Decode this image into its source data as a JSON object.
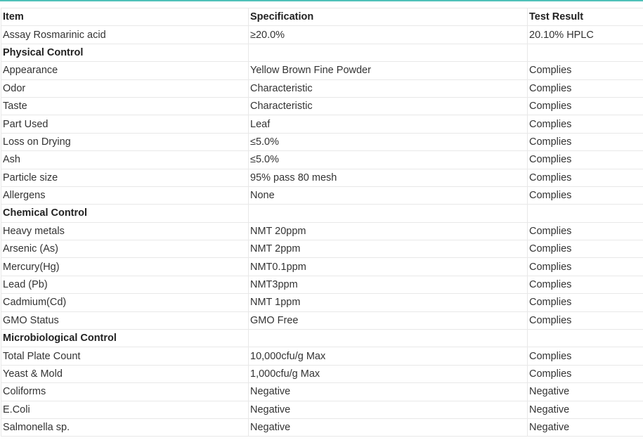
{
  "accent_color": "#4fc1b9",
  "header": [
    "Item",
    "Specification",
    "Test Result"
  ],
  "rows": [
    {
      "type": "row",
      "cells": [
        "Assay Rosmarinic acid",
        "≥20.0%",
        "20.10% HPLC"
      ]
    },
    {
      "type": "section",
      "cells": [
        "Physical Control",
        "",
        ""
      ]
    },
    {
      "type": "row",
      "cells": [
        "Appearance",
        "Yellow Brown Fine Powder",
        "Complies"
      ]
    },
    {
      "type": "row",
      "cells": [
        "Odor",
        "Characteristic",
        "Complies"
      ]
    },
    {
      "type": "row",
      "cells": [
        "Taste",
        "Characteristic",
        "Complies"
      ]
    },
    {
      "type": "row",
      "cells": [
        "Part Used",
        "Leaf",
        "Complies"
      ]
    },
    {
      "type": "row",
      "cells": [
        "Loss on Drying",
        "≤5.0%",
        "Complies"
      ]
    },
    {
      "type": "row",
      "cells": [
        "Ash",
        "≤5.0%",
        "Complies"
      ]
    },
    {
      "type": "row",
      "cells": [
        "Particle size",
        "95% pass 80 mesh",
        "Complies"
      ]
    },
    {
      "type": "row",
      "cells": [
        "Allergens",
        "None",
        "Complies"
      ]
    },
    {
      "type": "section",
      "cells": [
        "Chemical Control",
        "",
        ""
      ]
    },
    {
      "type": "row",
      "cells": [
        "Heavy metals",
        "NMT 20ppm",
        "Complies"
      ]
    },
    {
      "type": "row",
      "cells": [
        "Arsenic (As)",
        "NMT 2ppm",
        "Complies"
      ]
    },
    {
      "type": "row",
      "cells": [
        "Mercury(Hg)",
        "NMT0.1ppm",
        "Complies"
      ]
    },
    {
      "type": "row",
      "cells": [
        "Lead (Pb)",
        "NMT3ppm",
        "Complies"
      ]
    },
    {
      "type": "row",
      "cells": [
        "Cadmium(Cd)",
        "NMT 1ppm",
        "Complies"
      ]
    },
    {
      "type": "row",
      "cells": [
        "GMO Status",
        "GMO Free",
        "Complies"
      ]
    },
    {
      "type": "section",
      "cells": [
        "Microbiological Control",
        "",
        ""
      ]
    },
    {
      "type": "row",
      "cells": [
        "Total Plate Count",
        "10,000cfu/g Max",
        "Complies"
      ]
    },
    {
      "type": "row",
      "cells": [
        "Yeast & Mold",
        "1,000cfu/g Max",
        "Complies"
      ]
    },
    {
      "type": "row",
      "cells": [
        "Coliforms",
        "Negative",
        "Negative"
      ]
    },
    {
      "type": "row",
      "cells": [
        "E.Coli",
        "Negative",
        "Negative"
      ]
    },
    {
      "type": "row",
      "cells": [
        "Salmonella sp.",
        "Negative",
        "Negative"
      ]
    }
  ]
}
